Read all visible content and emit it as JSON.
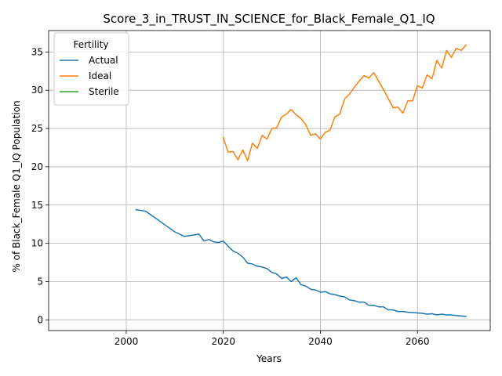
{
  "chart_data": {
    "type": "line",
    "title": "Score_3_in_TRUST_IN_SCIENCE_for_Black_Female_Q1_IQ",
    "xlabel": "Years",
    "ylabel": "% of Black_Female Q1_IQ Population",
    "xlim": [
      1984,
      2075
    ],
    "ylim": [
      -1.4,
      37.8
    ],
    "xticks": [
      2000,
      2020,
      2040,
      2060
    ],
    "yticks": [
      0,
      5,
      10,
      15,
      20,
      25,
      30,
      35
    ],
    "grid": true,
    "legend": {
      "title": "Fertility",
      "placement": "top-left"
    },
    "series": [
      {
        "name": "Actual",
        "color": "#1f77b4",
        "x": [
          2002,
          2004,
          2006,
          2008,
          2010,
          2012,
          2014,
          2015,
          2016,
          2017,
          2018,
          2019,
          2020,
          2021,
          2022,
          2023,
          2024,
          2025,
          2026,
          2027,
          2028,
          2029,
          2030,
          2031,
          2032,
          2033,
          2034,
          2035,
          2036,
          2037,
          2038,
          2039,
          2040,
          2041,
          2042,
          2043,
          2044,
          2045,
          2046,
          2047,
          2048,
          2049,
          2050,
          2051,
          2052,
          2053,
          2054,
          2055,
          2056,
          2057,
          2058,
          2059,
          2060,
          2061,
          2062,
          2063,
          2064,
          2065,
          2066,
          2067,
          2068,
          2069,
          2070
        ],
        "y": [
          14.4,
          14.2,
          13.3,
          12.4,
          11.5,
          10.9,
          11.1,
          11.2,
          10.3,
          10.5,
          10.2,
          10.1,
          10.3,
          9.6,
          9.0,
          8.7,
          8.2,
          7.4,
          7.3,
          7.0,
          6.9,
          6.7,
          6.2,
          6.0,
          5.4,
          5.6,
          5.0,
          5.5,
          4.6,
          4.4,
          4.0,
          3.9,
          3.6,
          3.7,
          3.4,
          3.3,
          3.1,
          3.0,
          2.6,
          2.5,
          2.3,
          2.3,
          1.9,
          1.9,
          1.7,
          1.7,
          1.3,
          1.3,
          1.1,
          1.1,
          1.0,
          0.95,
          0.9,
          0.85,
          0.75,
          0.8,
          0.65,
          0.75,
          0.65,
          0.65,
          0.55,
          0.5,
          0.45
        ]
      },
      {
        "name": "Ideal",
        "color": "#ff7f0e",
        "x": [
          2020,
          2021,
          2022,
          2023,
          2024,
          2025,
          2026,
          2027,
          2028,
          2029,
          2030,
          2031,
          2032,
          2033,
          2034,
          2035,
          2036,
          2037,
          2038,
          2039,
          2040,
          2041,
          2042,
          2043,
          2044,
          2045,
          2046,
          2047,
          2048,
          2049,
          2050,
          2051,
          2052,
          2053,
          2054,
          2055,
          2056,
          2057,
          2058,
          2059,
          2060,
          2061,
          2062,
          2063,
          2064,
          2065,
          2066,
          2067,
          2068,
          2069,
          2070
        ],
        "y": [
          23.8,
          21.9,
          22.0,
          20.9,
          22.2,
          20.8,
          23.1,
          22.4,
          24.1,
          23.6,
          25.0,
          25.1,
          26.5,
          26.9,
          27.5,
          26.8,
          26.3,
          25.5,
          24.1,
          24.3,
          23.6,
          24.5,
          24.8,
          26.5,
          26.9,
          28.9,
          29.5,
          30.4,
          31.2,
          31.9,
          31.6,
          32.3,
          31.2,
          30.1,
          28.9,
          27.7,
          27.8,
          27.0,
          28.6,
          28.6,
          30.6,
          30.3,
          32.0,
          31.5,
          33.9,
          32.9,
          35.2,
          34.3,
          35.5,
          35.2,
          35.9
        ]
      },
      {
        "name": "Sterile",
        "color": "#2ca02c",
        "x": [],
        "y": []
      }
    ]
  }
}
